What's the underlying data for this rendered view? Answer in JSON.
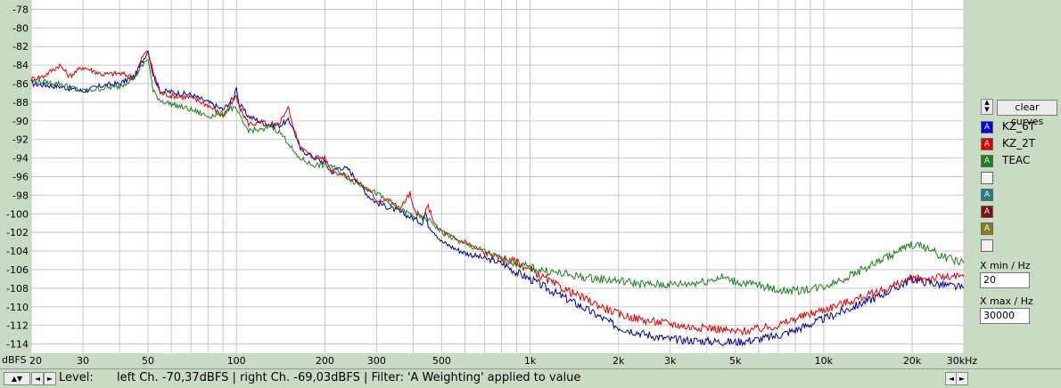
{
  "chart_data": {
    "type": "line",
    "xscale": "log",
    "xlim": [
      20,
      30000
    ],
    "ylim": [
      -115,
      -77
    ],
    "ylabel": "dBFS",
    "yticks": [
      -78,
      -80,
      -82,
      -84,
      -86,
      -88,
      -90,
      -92,
      -94,
      -96,
      -98,
      -100,
      -102,
      -104,
      -106,
      -108,
      -110,
      -112,
      -114
    ],
    "xticks": [
      {
        "v": 20,
        "label": "20"
      },
      {
        "v": 30,
        "label": "30"
      },
      {
        "v": 50,
        "label": "50"
      },
      {
        "v": 100,
        "label": "100"
      },
      {
        "v": 200,
        "label": "200"
      },
      {
        "v": 300,
        "label": "300"
      },
      {
        "v": 500,
        "label": "500"
      },
      {
        "v": 1000,
        "label": "1k"
      },
      {
        "v": 2000,
        "label": "2k"
      },
      {
        "v": 3000,
        "label": "3k"
      },
      {
        "v": 5000,
        "label": "5k"
      },
      {
        "v": 10000,
        "label": "10k"
      },
      {
        "v": 20000,
        "label": "20k"
      },
      {
        "v": 30000,
        "label": "30kHz"
      }
    ],
    "grid": true,
    "series": [
      {
        "name": "KZ_6T",
        "color": "#0000a0",
        "points": [
          [
            20,
            -86
          ],
          [
            25,
            -86.3
          ],
          [
            30,
            -86.8
          ],
          [
            35,
            -86.2
          ],
          [
            40,
            -86
          ],
          [
            45,
            -85.2
          ],
          [
            48,
            -83.5
          ],
          [
            50,
            -82.4
          ],
          [
            52,
            -85
          ],
          [
            55,
            -86.8
          ],
          [
            60,
            -86.9
          ],
          [
            70,
            -87.2
          ],
          [
            80,
            -88
          ],
          [
            90,
            -88.8
          ],
          [
            98,
            -87.5
          ],
          [
            100,
            -86.2
          ],
          [
            102,
            -88.2
          ],
          [
            110,
            -89.5
          ],
          [
            125,
            -90.3
          ],
          [
            140,
            -90.5
          ],
          [
            150,
            -90
          ],
          [
            155,
            -90.5
          ],
          [
            165,
            -93
          ],
          [
            180,
            -93.8
          ],
          [
            200,
            -94.5
          ],
          [
            210,
            -95.5
          ],
          [
            225,
            -95
          ],
          [
            240,
            -95.2
          ],
          [
            260,
            -96.5
          ],
          [
            280,
            -98
          ],
          [
            300,
            -98.8
          ],
          [
            330,
            -99.3
          ],
          [
            360,
            -99.8
          ],
          [
            400,
            -100.5
          ],
          [
            430,
            -101
          ],
          [
            440,
            -99.8
          ],
          [
            450,
            -101.2
          ],
          [
            480,
            -102.2
          ],
          [
            500,
            -103
          ],
          [
            560,
            -103.8
          ],
          [
            600,
            -104.2
          ],
          [
            700,
            -104.8
          ],
          [
            800,
            -105.3
          ],
          [
            900,
            -106.3
          ],
          [
            1000,
            -107
          ],
          [
            1200,
            -108.4
          ],
          [
            1500,
            -110
          ],
          [
            2000,
            -112.2
          ],
          [
            2500,
            -113
          ],
          [
            3000,
            -113.5
          ],
          [
            3500,
            -113.6
          ],
          [
            4000,
            -113.7
          ],
          [
            5000,
            -113.8
          ],
          [
            6000,
            -113.5
          ],
          [
            7000,
            -113.1
          ],
          [
            8000,
            -112.5
          ],
          [
            10000,
            -111.3
          ],
          [
            12000,
            -110.3
          ],
          [
            15000,
            -109
          ],
          [
            18000,
            -107.8
          ],
          [
            20000,
            -107
          ],
          [
            22000,
            -107.3
          ],
          [
            25000,
            -107.6
          ],
          [
            30000,
            -108
          ]
        ]
      },
      {
        "name": "KZ_2T",
        "color": "#e00000",
        "points": [
          [
            20,
            -85.5
          ],
          [
            22,
            -85.2
          ],
          [
            25,
            -84
          ],
          [
            27,
            -85.2
          ],
          [
            30,
            -84.2
          ],
          [
            35,
            -85
          ],
          [
            40,
            -84.9
          ],
          [
            45,
            -85.3
          ],
          [
            48,
            -83
          ],
          [
            50,
            -82.5
          ],
          [
            52,
            -84.7
          ],
          [
            55,
            -87
          ],
          [
            60,
            -87.3
          ],
          [
            70,
            -87.5
          ],
          [
            80,
            -88.3
          ],
          [
            90,
            -89.5
          ],
          [
            95,
            -88.5
          ],
          [
            100,
            -87.3
          ],
          [
            102,
            -88.5
          ],
          [
            110,
            -90.3
          ],
          [
            125,
            -90.2
          ],
          [
            130,
            -90.8
          ],
          [
            140,
            -90.2
          ],
          [
            150,
            -88.5
          ],
          [
            155,
            -90.4
          ],
          [
            165,
            -92.8
          ],
          [
            180,
            -93.8
          ],
          [
            200,
            -94
          ],
          [
            210,
            -95.3
          ],
          [
            230,
            -95.8
          ],
          [
            250,
            -96.3
          ],
          [
            280,
            -97.3
          ],
          [
            300,
            -98.5
          ],
          [
            330,
            -98.5
          ],
          [
            360,
            -99.5
          ],
          [
            390,
            -97.8
          ],
          [
            400,
            -99.5
          ],
          [
            430,
            -100.5
          ],
          [
            450,
            -99.2
          ],
          [
            480,
            -101.5
          ],
          [
            500,
            -101.8
          ],
          [
            560,
            -102.8
          ],
          [
            600,
            -103
          ],
          [
            700,
            -104.2
          ],
          [
            800,
            -104.8
          ],
          [
            900,
            -105.2
          ],
          [
            1000,
            -106
          ],
          [
            1200,
            -107.5
          ],
          [
            1500,
            -109
          ],
          [
            2000,
            -110.8
          ],
          [
            2500,
            -111.5
          ],
          [
            3000,
            -111.8
          ],
          [
            3500,
            -112.2
          ],
          [
            4000,
            -112.2
          ],
          [
            5000,
            -112.7
          ],
          [
            6000,
            -112.4
          ],
          [
            7000,
            -112
          ],
          [
            8000,
            -111.3
          ],
          [
            10000,
            -110.3
          ],
          [
            12000,
            -109.5
          ],
          [
            15000,
            -108.5
          ],
          [
            18000,
            -107.5
          ],
          [
            20000,
            -107
          ],
          [
            22000,
            -107
          ],
          [
            25000,
            -106.8
          ],
          [
            30000,
            -106.8
          ]
        ]
      },
      {
        "name": "TEAC",
        "color": "#208020",
        "points": [
          [
            20,
            -85.7
          ],
          [
            25,
            -86
          ],
          [
            30,
            -86.8
          ],
          [
            35,
            -86.5
          ],
          [
            40,
            -86.3
          ],
          [
            45,
            -85.3
          ],
          [
            48,
            -84
          ],
          [
            50,
            -83.3
          ],
          [
            52,
            -86.8
          ],
          [
            55,
            -87.8
          ],
          [
            60,
            -88.2
          ],
          [
            70,
            -88.8
          ],
          [
            80,
            -89.5
          ],
          [
            90,
            -89.2
          ],
          [
            95,
            -88.6
          ],
          [
            100,
            -88.8
          ],
          [
            105,
            -90.2
          ],
          [
            110,
            -91
          ],
          [
            125,
            -91
          ],
          [
            130,
            -90.5
          ],
          [
            140,
            -91.2
          ],
          [
            150,
            -92.3
          ],
          [
            160,
            -93.8
          ],
          [
            180,
            -94.7
          ],
          [
            200,
            -94.8
          ],
          [
            210,
            -94.8
          ],
          [
            230,
            -95.7
          ],
          [
            250,
            -96.5
          ],
          [
            280,
            -97.3
          ],
          [
            300,
            -97.8
          ],
          [
            330,
            -98.8
          ],
          [
            360,
            -99.5
          ],
          [
            400,
            -100.2
          ],
          [
            430,
            -100.5
          ],
          [
            460,
            -100.8
          ],
          [
            500,
            -102
          ],
          [
            560,
            -102.8
          ],
          [
            600,
            -103.3
          ],
          [
            700,
            -104
          ],
          [
            800,
            -104.8
          ],
          [
            900,
            -105.3
          ],
          [
            1000,
            -105.8
          ],
          [
            1200,
            -106.3
          ],
          [
            1500,
            -106.8
          ],
          [
            2000,
            -107.2
          ],
          [
            2500,
            -107.6
          ],
          [
            3000,
            -107.6
          ],
          [
            3500,
            -107.5
          ],
          [
            4000,
            -107.2
          ],
          [
            4500,
            -106.8
          ],
          [
            5000,
            -107.3
          ],
          [
            6000,
            -107.7
          ],
          [
            7000,
            -108.2
          ],
          [
            8000,
            -108.3
          ],
          [
            10000,
            -107.8
          ],
          [
            12000,
            -106.8
          ],
          [
            15000,
            -105.3
          ],
          [
            18000,
            -104
          ],
          [
            20000,
            -103.3
          ],
          [
            22000,
            -103.5
          ],
          [
            25000,
            -104.5
          ],
          [
            30000,
            -105.3
          ]
        ]
      }
    ]
  },
  "side": {
    "clear_label": "clear curves",
    "legend": [
      {
        "label": "KZ_6T",
        "color": "#0000e0",
        "glyph": "A"
      },
      {
        "label": "KZ_2T",
        "color": "#e00000",
        "glyph": "A"
      },
      {
        "label": "TEAC",
        "color": "#208020",
        "glyph": "A"
      },
      {
        "label": "",
        "color": "#f0f0f0",
        "glyph": ""
      },
      {
        "label": "",
        "color": "#208080",
        "glyph": "A"
      },
      {
        "label": "",
        "color": "#801010",
        "glyph": "A"
      },
      {
        "label": "",
        "color": "#808020",
        "glyph": "A"
      },
      {
        "label": "",
        "color": "#f0f0f0",
        "glyph": ""
      }
    ],
    "xmin_label": "X min / Hz",
    "xmin_value": "20",
    "xmax_label": "X max / Hz",
    "xmax_value": "30000"
  },
  "status": {
    "level_label": "Level:",
    "text": "left Ch. -70,37dBFS | right Ch. -69,03dBFS | Filter: 'A Weighting' applied to value"
  }
}
